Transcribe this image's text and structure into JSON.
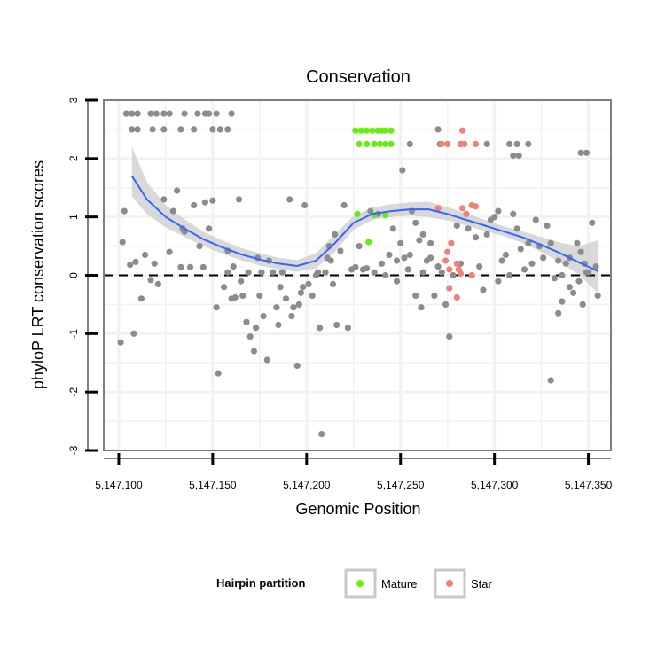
{
  "chart_data": {
    "type": "scatter",
    "title": "Conservation",
    "xlabel": "Genomic Position",
    "ylabel": "phyloP LRT conservation scores",
    "xlim": [
      5147092,
      5147362
    ],
    "ylim": [
      -3,
      3
    ],
    "x_ticks": [
      5147100,
      5147150,
      5147200,
      5147250,
      5147300,
      5147350
    ],
    "x_tick_labels": [
      "5,147,100",
      "5,147,150",
      "5,147,200",
      "5,147,250",
      "5,147,300",
      "5,147,350"
    ],
    "y_ticks": [
      -3,
      -2,
      -1,
      0,
      1,
      2,
      3
    ],
    "y_tick_labels": [
      "-3",
      "-2",
      "-1",
      "0",
      "1",
      "2",
      "3"
    ],
    "reference_line": {
      "y": 0,
      "style": "dashed"
    },
    "legend": {
      "title": "Hairpin partition",
      "position": "bottom",
      "entries": [
        {
          "label": "Mature",
          "color": "#66EE11"
        },
        {
          "label": "Star",
          "color": "#F08078"
        }
      ]
    },
    "colors": {
      "other": "#8C8C8C",
      "mature": "#66EE11",
      "star": "#F08078",
      "smooth": "#3366FF",
      "band": "#CCCCCC"
    },
    "series": [
      {
        "name": "Other",
        "points": [
          [
            5147104,
            2.77
          ],
          [
            5147107,
            2.77
          ],
          [
            5147110,
            2.77
          ],
          [
            5147117,
            2.77
          ],
          [
            5147120,
            2.77
          ],
          [
            5147124,
            2.77
          ],
          [
            5147127,
            2.77
          ],
          [
            5147135,
            2.77
          ],
          [
            5147142,
            2.77
          ],
          [
            5147146,
            2.77
          ],
          [
            5147148,
            2.77
          ],
          [
            5147152,
            2.77
          ],
          [
            5147160,
            2.77
          ],
          [
            5147107,
            2.5
          ],
          [
            5147110,
            2.5
          ],
          [
            5147118,
            2.5
          ],
          [
            5147124,
            2.5
          ],
          [
            5147133,
            2.5
          ],
          [
            5147140,
            2.5
          ],
          [
            5147150,
            2.5
          ],
          [
            5147154,
            2.5
          ],
          [
            5147158,
            2.5
          ],
          [
            5147270,
            2.5
          ],
          [
            5147296,
            2.25
          ],
          [
            5147308,
            2.25
          ],
          [
            5147312,
            2.25
          ],
          [
            5147318,
            2.25
          ],
          [
            5147310,
            2.05
          ],
          [
            5147313,
            2.05
          ],
          [
            5147255,
            2.25
          ],
          [
            5147271,
            2.25
          ],
          [
            5147282,
            2.25
          ],
          [
            5147251,
            1.8
          ],
          [
            5147302,
            1.1
          ],
          [
            5147346,
            2.1
          ],
          [
            5147349,
            2.1
          ],
          [
            5147102,
            0.57
          ],
          [
            5147103,
            1.1
          ],
          [
            5147106,
            0.18
          ],
          [
            5147109,
            0.23
          ],
          [
            5147112,
            -0.4
          ],
          [
            5147114,
            0.35
          ],
          [
            5147117,
            -0.08
          ],
          [
            5147119,
            0.2
          ],
          [
            5147121,
            -0.15
          ],
          [
            5147124,
            1.3
          ],
          [
            5147127,
            0.4
          ],
          [
            5147129,
            1.1
          ],
          [
            5147131,
            1.45
          ],
          [
            5147133,
            0.14
          ],
          [
            5147134,
            0.8
          ],
          [
            5147135,
            0.75
          ],
          [
            5147138,
            0.14
          ],
          [
            5147140,
            1.2
          ],
          [
            5147143,
            0.5
          ],
          [
            5147146,
            1.25
          ],
          [
            5147148,
            0.8
          ],
          [
            5147150,
            1.28
          ],
          [
            5147152,
            -0.55
          ],
          [
            5147153,
            -1.68
          ],
          [
            5147156,
            -0.2
          ],
          [
            5147158,
            0.42
          ],
          [
            5147160,
            -0.4
          ],
          [
            5147162,
            -0.38
          ],
          [
            5147164,
            1.3
          ],
          [
            5147166,
            -0.35
          ],
          [
            5147168,
            -0.8
          ],
          [
            5147170,
            -1.05
          ],
          [
            5147172,
            -1.3
          ],
          [
            5147173,
            -0.9
          ],
          [
            5147175,
            -0.35
          ],
          [
            5147177,
            -0.7
          ],
          [
            5147179,
            -1.45
          ],
          [
            5147182,
            0.05
          ],
          [
            5147184,
            -0.55
          ],
          [
            5147185,
            -0.85
          ],
          [
            5147187,
            0.05
          ],
          [
            5147189,
            -0.4
          ],
          [
            5147191,
            1.3
          ],
          [
            5147193,
            -0.55
          ],
          [
            5147195,
            -1.55
          ],
          [
            5147197,
            -0.3
          ],
          [
            5147199,
            1.2
          ],
          [
            5147201,
            -0.15
          ],
          [
            5147203,
            -0.35
          ],
          [
            5147205,
            0.0
          ],
          [
            5147207,
            -0.9
          ],
          [
            5147208,
            -2.72
          ],
          [
            5147210,
            0.05
          ],
          [
            5147211,
            0.3
          ],
          [
            5147213,
            0.25
          ],
          [
            5147214,
            -0.15
          ],
          [
            5147216,
            -0.85
          ],
          [
            5147218,
            0.42
          ],
          [
            5147220,
            1.2
          ],
          [
            5147222,
            -0.9
          ],
          [
            5147224,
            0.1
          ],
          [
            5147226,
            0.14
          ],
          [
            5147228,
            0.5
          ],
          [
            5147230,
            0.1
          ],
          [
            5147232,
            0.12
          ],
          [
            5147234,
            1.1
          ],
          [
            5147236,
            0.05
          ],
          [
            5147238,
            1.05
          ],
          [
            5147240,
            0.2
          ],
          [
            5147242,
            0.0
          ],
          [
            5147244,
            0.35
          ],
          [
            5147246,
            0.8
          ],
          [
            5147248,
            -0.1
          ],
          [
            5147250,
            0.55
          ],
          [
            5147252,
            0.3
          ],
          [
            5147254,
            0.1
          ],
          [
            5147256,
            1.1
          ],
          [
            5147258,
            0.9
          ],
          [
            5147260,
            0.6
          ],
          [
            5147262,
            0.7
          ],
          [
            5147264,
            0.25
          ],
          [
            5147266,
            0.3
          ],
          [
            5147268,
            -0.35
          ],
          [
            5147270,
            0.15
          ],
          [
            5147272,
            0.05
          ],
          [
            5147274,
            -0.5
          ],
          [
            5147276,
            -1.05
          ],
          [
            5147278,
            0.0
          ],
          [
            5147280,
            0.85
          ],
          [
            5147282,
            0.2
          ],
          [
            5147286,
            0.8
          ],
          [
            5147290,
            0.65
          ],
          [
            5147292,
            0.15
          ],
          [
            5147294,
            -0.25
          ],
          [
            5147296,
            0.7
          ],
          [
            5147298,
            0.95
          ],
          [
            5147300,
            1.0
          ],
          [
            5147302,
            -0.1
          ],
          [
            5147304,
            0.25
          ],
          [
            5147306,
            0.35
          ],
          [
            5147308,
            0.0
          ],
          [
            5147310,
            1.05
          ],
          [
            5147312,
            0.8
          ],
          [
            5147314,
            0.45
          ],
          [
            5147316,
            0.1
          ],
          [
            5147318,
            0.55
          ],
          [
            5147320,
            0.2
          ],
          [
            5147322,
            0.95
          ],
          [
            5147324,
            0.5
          ],
          [
            5147326,
            0.3
          ],
          [
            5147328,
            0.85
          ],
          [
            5147330,
            0.55
          ],
          [
            5147332,
            -0.05
          ],
          [
            5147334,
            -0.65
          ],
          [
            5147336,
            0.0
          ],
          [
            5147338,
            0.2
          ],
          [
            5147340,
            0.3
          ],
          [
            5147342,
            -0.3
          ],
          [
            5147344,
            0.55
          ],
          [
            5147346,
            0.4
          ],
          [
            5147348,
            0.2
          ],
          [
            5147350,
            0.05
          ],
          [
            5147352,
            0.9
          ],
          [
            5147354,
            0.15
          ],
          [
            5147355,
            -0.35
          ],
          [
            5147330,
            -1.8
          ],
          [
            5147334,
            0.25
          ],
          [
            5147347,
            -0.5
          ],
          [
            5147349,
            0.05
          ],
          [
            5147101,
            -1.15
          ],
          [
            5147108,
            -1.0
          ],
          [
            5147145,
            0.14
          ],
          [
            5147258,
            -0.35
          ],
          [
            5147261,
            -0.55
          ],
          [
            5147248,
            0.25
          ],
          [
            5147262,
            0.05
          ],
          [
            5147266,
            0.55
          ],
          [
            5147255,
            0.35
          ],
          [
            5147215,
            0.7
          ],
          [
            5147212,
            0.5
          ],
          [
            5147206,
            0.05
          ],
          [
            5147198,
            -0.2
          ],
          [
            5147196,
            -0.5
          ],
          [
            5147192,
            -0.7
          ],
          [
            5147186,
            -0.2
          ],
          [
            5147180,
            0.25
          ],
          [
            5147176,
            0.05
          ],
          [
            5147174,
            0.3
          ],
          [
            5147169,
            0.05
          ],
          [
            5147165,
            -0.1
          ],
          [
            5147161,
            0.15
          ],
          [
            5147158,
            0.05
          ],
          [
            5147340,
            -0.2
          ],
          [
            5147336,
            -0.45
          ],
          [
            5147345,
            -0.1
          ]
        ]
      },
      {
        "name": "Mature",
        "points": [
          [
            5147226,
            2.48
          ],
          [
            5147229,
            2.48
          ],
          [
            5147232,
            2.48
          ],
          [
            5147235,
            2.48
          ],
          [
            5147238,
            2.48
          ],
          [
            5147240,
            2.48
          ],
          [
            5147242,
            2.48
          ],
          [
            5147245,
            2.48
          ],
          [
            5147228,
            2.25
          ],
          [
            5147232,
            2.25
          ],
          [
            5147236,
            2.25
          ],
          [
            5147239,
            2.25
          ],
          [
            5147242,
            2.25
          ],
          [
            5147245,
            2.25
          ],
          [
            5147227,
            1.05
          ],
          [
            5147236,
            1.03
          ],
          [
            5147242,
            1.03
          ],
          [
            5147233,
            0.57
          ]
        ]
      },
      {
        "name": "Star",
        "points": [
          [
            5147283,
            2.48
          ],
          [
            5147272,
            2.25
          ],
          [
            5147275,
            2.25
          ],
          [
            5147282,
            2.25
          ],
          [
            5147284,
            2.25
          ],
          [
            5147290,
            2.25
          ],
          [
            5147283,
            1.15
          ],
          [
            5147288,
            1.2
          ],
          [
            5147290,
            1.18
          ],
          [
            5147285,
            1.05
          ],
          [
            5147270,
            1.15
          ],
          [
            5147275,
            0.4
          ],
          [
            5147277,
            0.55
          ],
          [
            5147274,
            0.25
          ],
          [
            5147276,
            0.1
          ],
          [
            5147280,
            0.2
          ],
          [
            5147281,
            0.1
          ],
          [
            5147282,
            0.03
          ],
          [
            5147288,
            0.0
          ],
          [
            5147276,
            -0.22
          ],
          [
            5147280,
            -0.38
          ]
        ]
      }
    ],
    "smooth": {
      "x": [
        5147107,
        5147115,
        5147125,
        5147135,
        5147145,
        5147155,
        5147165,
        5147175,
        5147185,
        5147195,
        5147205,
        5147215,
        5147225,
        5147235,
        5147245,
        5147255,
        5147265,
        5147275,
        5147285,
        5147295,
        5147305,
        5147315,
        5147325,
        5147335,
        5147345,
        5147355
      ],
      "y": [
        1.7,
        1.3,
        1.0,
        0.8,
        0.62,
        0.48,
        0.36,
        0.27,
        0.2,
        0.16,
        0.25,
        0.55,
        0.9,
        1.05,
        1.1,
        1.13,
        1.13,
        1.05,
        0.95,
        0.85,
        0.75,
        0.65,
        0.52,
        0.38,
        0.22,
        0.07
      ],
      "lower": [
        1.35,
        1.05,
        0.82,
        0.66,
        0.5,
        0.37,
        0.26,
        0.17,
        0.1,
        0.06,
        0.12,
        0.4,
        0.78,
        0.95,
        1.0,
        1.02,
        1.0,
        0.94,
        0.85,
        0.76,
        0.67,
        0.55,
        0.4,
        0.22,
        0.01,
        -0.3
      ],
      "upper": [
        2.2,
        1.6,
        1.2,
        0.96,
        0.75,
        0.6,
        0.47,
        0.38,
        0.3,
        0.26,
        0.38,
        0.7,
        1.02,
        1.16,
        1.22,
        1.25,
        1.26,
        1.17,
        1.06,
        0.95,
        0.84,
        0.75,
        0.66,
        0.56,
        0.5,
        0.6
      ]
    }
  }
}
